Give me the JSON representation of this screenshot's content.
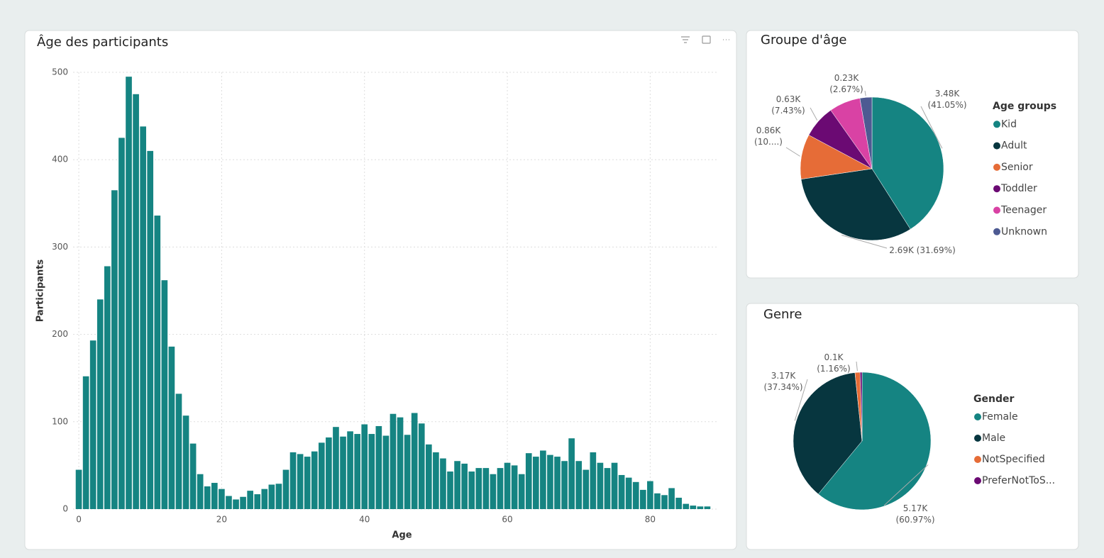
{
  "chart_data": [
    {
      "type": "bar",
      "title": "Âge des participants",
      "x_label": "Age",
      "y_label": "Participants",
      "x": [
        0,
        1,
        2,
        3,
        4,
        5,
        6,
        7,
        8,
        9,
        10,
        11,
        12,
        13,
        14,
        15,
        16,
        17,
        18,
        19,
        20,
        21,
        22,
        23,
        24,
        25,
        26,
        27,
        28,
        29,
        30,
        31,
        32,
        33,
        34,
        35,
        36,
        37,
        38,
        39,
        40,
        41,
        42,
        43,
        44,
        45,
        46,
        47,
        48,
        49,
        50,
        51,
        52,
        53,
        54,
        55,
        56,
        57,
        58,
        59,
        60,
        61,
        62,
        63,
        64,
        65,
        66,
        67,
        68,
        69,
        70,
        71,
        72,
        73,
        74,
        75,
        76,
        77,
        78,
        79,
        80,
        81,
        82,
        83,
        84,
        85,
        86,
        87,
        88
      ],
      "values": [
        45,
        152,
        193,
        240,
        278,
        365,
        425,
        495,
        475,
        438,
        410,
        336,
        262,
        186,
        132,
        107,
        75,
        40,
        26,
        30,
        23,
        15,
        11,
        14,
        21,
        17,
        23,
        28,
        29,
        45,
        65,
        63,
        60,
        66,
        76,
        82,
        94,
        83,
        89,
        86,
        97,
        86,
        95,
        84,
        109,
        105,
        85,
        110,
        98,
        74,
        65,
        58,
        43,
        55,
        52,
        43,
        47,
        47,
        40,
        47,
        53,
        50,
        40,
        64,
        60,
        67,
        62,
        60,
        55,
        81,
        55,
        45,
        65,
        53,
        47,
        53,
        39,
        36,
        31,
        22,
        32,
        18,
        16,
        24,
        13,
        6,
        4,
        3,
        3
      ],
      "color": "#158482",
      "xlim": [
        -0.8,
        89.3
      ],
      "ylim": [
        0,
        500
      ],
      "xticks": [
        0,
        20,
        40,
        60,
        80
      ],
      "yticks": [
        0,
        100,
        200,
        300,
        400,
        500
      ],
      "grid": true
    },
    {
      "type": "pie",
      "title": "Groupe d'âge",
      "legend_title": "Age groups",
      "categories": [
        "Kid",
        "Adult",
        "Senior",
        "Toddler",
        "Teenager",
        "Unknown"
      ],
      "values": [
        3.48,
        2.69,
        0.86,
        0.63,
        0.6,
        0.23
      ],
      "value_labels": [
        [
          "3.48K",
          "(41.05%)"
        ],
        [
          "2.69K (31.69%)"
        ],
        [
          "0.86K",
          "(10....)"
        ],
        [
          "0.63K",
          "(7.43%)"
        ],
        null,
        [
          "0.23K",
          "(2.67%)"
        ]
      ],
      "colors": [
        "#158482",
        "#07363f",
        "#e66c37",
        "#6b0a73",
        "#d942a4",
        "#4d5a92"
      ],
      "legend": "right"
    },
    {
      "type": "pie",
      "title": "Genre",
      "legend_title": "Gender",
      "categories": [
        "Female",
        "Male",
        "NotSpecified",
        "PreferNotToS..."
      ],
      "values": [
        5.17,
        3.17,
        0.1,
        0.04
      ],
      "value_labels": [
        [
          "5.17K",
          "(60.97%)"
        ],
        [
          "3.17K",
          "(37.34%)"
        ],
        [
          "0.1K",
          "(1.16%)"
        ],
        null
      ],
      "colors": [
        "#158482",
        "#07363f",
        "#e66c37",
        "#6b0a73"
      ],
      "legend": "right"
    }
  ]
}
